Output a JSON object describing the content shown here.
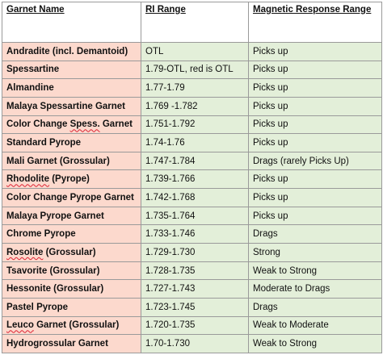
{
  "headers": {
    "name": "Garnet Name",
    "ri": "RI Range",
    "magnetic": "Magnetic Response Range"
  },
  "rows": [
    {
      "name_parts": [
        "Andradite (incl. Demantoid)"
      ],
      "ri": "OTL",
      "magnetic": "Picks up"
    },
    {
      "name_parts": [
        "Spessartine"
      ],
      "ri": "1.79-OTL, red is OTL",
      "magnetic": "Picks up"
    },
    {
      "name_parts": [
        "Almandine"
      ],
      "ri": "1.77-1.79",
      "magnetic": "Picks up"
    },
    {
      "name_parts": [
        "Malaya Spessartine Garnet"
      ],
      "ri": "1.769 -1.782",
      "magnetic": "Picks up"
    },
    {
      "name_parts": [
        "Color Change ",
        "Spess.",
        " Garnet"
      ],
      "ri": "1.751-1.792",
      "magnetic": "Picks up"
    },
    {
      "name_parts": [
        "Standard Pyrope"
      ],
      "ri": "1.74-1.76",
      "magnetic": "Picks up"
    },
    {
      "name_parts": [
        "Mali Garnet (Grossular)"
      ],
      "ri": "1.747-1.784",
      "magnetic": "Drags (rarely Picks Up)"
    },
    {
      "name_parts": [
        "",
        "Rhodolite",
        " (Pyrope)"
      ],
      "ri": "1.739-1.766",
      "magnetic": "Picks up"
    },
    {
      "name_parts": [
        "Color Change Pyrope Garnet"
      ],
      "ri": "1.742-1.768",
      "magnetic": "Picks up"
    },
    {
      "name_parts": [
        "Malaya Pyrope Garnet"
      ],
      "ri": "1.735-1.764",
      "magnetic": "Picks up"
    },
    {
      "name_parts": [
        "Chrome Pyrope"
      ],
      "ri": "1.733-1.746",
      "magnetic": "Drags"
    },
    {
      "name_parts": [
        "",
        "Rosolite",
        " (Grossular)"
      ],
      "ri": "1.729-1.730",
      "magnetic": "Strong"
    },
    {
      "name_parts": [
        "Tsavorite (Grossular)"
      ],
      "ri": "1.728-1.735",
      "magnetic": "Weak to Strong"
    },
    {
      "name_parts": [
        "Hessonite (Grossular)"
      ],
      "ri": "1.727-1.743",
      "magnetic": "Moderate to Drags"
    },
    {
      "name_parts": [
        "Pastel Pyrope"
      ],
      "ri": "1.723-1.745",
      "magnetic": "Drags"
    },
    {
      "name_parts": [
        "",
        "Leuco",
        " Garnet (Grossular)"
      ],
      "ri": "1.720-1.735",
      "magnetic": "Weak to Moderate"
    },
    {
      "name_parts": [
        "Hydrogrossular Garnet"
      ],
      "ri": "1.70-1.730",
      "magnetic": "Weak to Strong"
    }
  ]
}
